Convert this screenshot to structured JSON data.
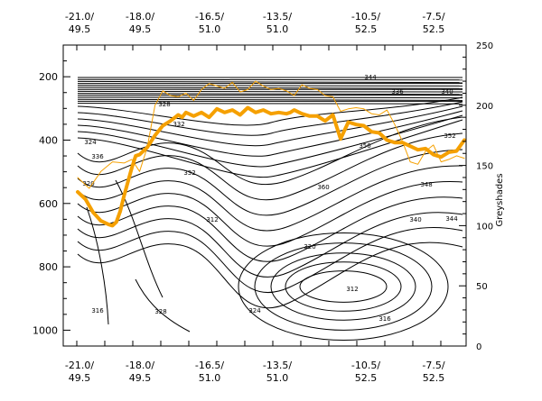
{
  "chart_data": {
    "type": "contour_line_overlay",
    "x_ticks": [
      {
        "lon": "-21.0/",
        "lat": "49.5"
      },
      {
        "lon": "-18.0/",
        "lat": "49.5"
      },
      {
        "lon": "-16.5/",
        "lat": "51.0"
      },
      {
        "lon": "-13.5/",
        "lat": "51.0"
      },
      {
        "lon": "-10.5/",
        "lat": "52.5"
      },
      {
        "lon": "-7.5/",
        "lat": "52.5"
      }
    ],
    "y_left": {
      "ticks": [
        200,
        400,
        600,
        800,
        1000
      ],
      "ylim": [
        1050,
        100
      ],
      "inverted": true
    },
    "y_right": {
      "label": "Greyshades",
      "ticks": [
        0,
        50,
        100,
        150,
        200,
        250
      ],
      "ylim": [
        0,
        250
      ]
    },
    "contour_labels": [
      "312",
      "316",
      "320",
      "324",
      "328",
      "332",
      "336",
      "340",
      "344",
      "348",
      "352",
      "356",
      "360"
    ],
    "series": [
      {
        "color": "#f5a000",
        "width": 4,
        "x": [
          0.0,
          0.02,
          0.04,
          0.06,
          0.08,
          0.09,
          0.1,
          0.11,
          0.12,
          0.14,
          0.15,
          0.16,
          0.18,
          0.2,
          0.22,
          0.24,
          0.26,
          0.27,
          0.28,
          0.3,
          0.32,
          0.34,
          0.36,
          0.38,
          0.4,
          0.42,
          0.44,
          0.46,
          0.48,
          0.5,
          0.52,
          0.54,
          0.55,
          0.56,
          0.58,
          0.6,
          0.62,
          0.64,
          0.66,
          0.68,
          0.7,
          0.72,
          0.74,
          0.76,
          0.78,
          0.8,
          0.82,
          0.84,
          0.86,
          0.88,
          0.9,
          0.92,
          0.94,
          0.96,
          0.98,
          1.0
        ],
        "y": [
          128,
          122,
          111,
          104,
          101,
          100,
          103,
          112,
          125,
          148,
          158,
          159,
          165,
          175,
          183,
          187,
          192,
          190,
          194,
          191,
          194,
          190,
          197,
          194,
          196,
          192,
          198,
          194,
          196,
          193,
          194,
          193,
          194,
          196,
          193,
          191,
          191,
          187,
          192,
          172,
          186,
          184,
          183,
          178,
          177,
          171,
          169,
          169,
          166,
          163,
          164,
          159,
          157,
          161,
          162,
          171
        ]
      },
      {
        "color": "#f5a000",
        "width": 1,
        "x": [
          0.0,
          0.03,
          0.06,
          0.09,
          0.12,
          0.14,
          0.16,
          0.18,
          0.2,
          0.22,
          0.24,
          0.26,
          0.28,
          0.3,
          0.32,
          0.34,
          0.36,
          0.38,
          0.4,
          0.42,
          0.44,
          0.46,
          0.48,
          0.5,
          0.52,
          0.54,
          0.56,
          0.58,
          0.6,
          0.62,
          0.64,
          0.66,
          0.68,
          0.7,
          0.72,
          0.74,
          0.76,
          0.78,
          0.8,
          0.82,
          0.84,
          0.86,
          0.88,
          0.9,
          0.92,
          0.94,
          0.96,
          0.98,
          1.0
        ],
        "y": [
          140,
          131,
          145,
          153,
          152,
          155,
          145,
          165,
          200,
          212,
          208,
          207,
          210,
          204,
          213,
          218,
          216,
          214,
          219,
          211,
          213,
          220,
          216,
          213,
          214,
          212,
          208,
          217,
          214,
          213,
          208,
          207,
          195,
          197,
          198,
          197,
          193,
          192,
          196,
          184,
          170,
          153,
          151,
          162,
          167,
          153,
          155,
          158,
          156
        ]
      }
    ]
  }
}
